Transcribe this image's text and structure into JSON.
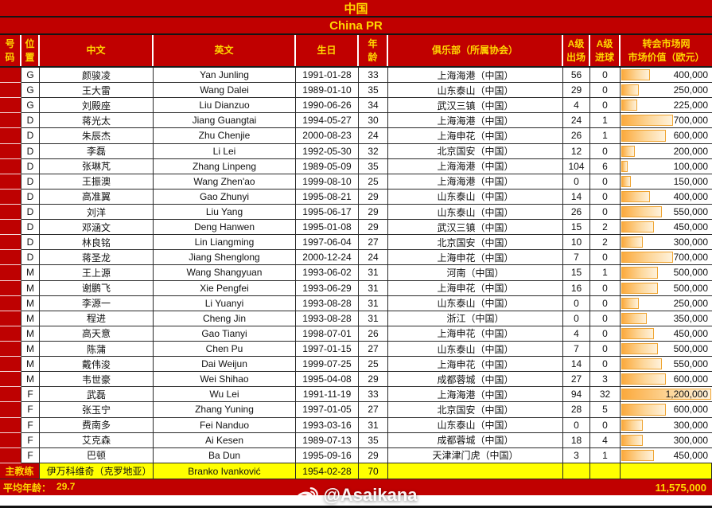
{
  "titles": {
    "cn": "中国",
    "en": "China PR"
  },
  "columns": [
    "号\n码",
    "位\n置",
    "中文",
    "英文",
    "生日",
    "年\n龄",
    "俱乐部（所属协会）",
    "A级\n出场",
    "A级\n进球",
    "转会市场网\n市场价值（欧元）"
  ],
  "players": [
    {
      "pos": "G",
      "name_cn": "颜骏凌",
      "name_en": "Yan Junling",
      "birth": "1991-01-28",
      "age": "33",
      "club": "上海海港（中国）",
      "caps": "56",
      "goals": "0",
      "value": "400,000"
    },
    {
      "pos": "G",
      "name_cn": "王大雷",
      "name_en": "Wang Dalei",
      "birth": "1989-01-10",
      "age": "35",
      "club": "山东泰山（中国）",
      "caps": "29",
      "goals": "0",
      "value": "250,000"
    },
    {
      "pos": "G",
      "name_cn": "刘殿座",
      "name_en": "Liu Dianzuo",
      "birth": "1990-06-26",
      "age": "34",
      "club": "武汉三镇（中国）",
      "caps": "4",
      "goals": "0",
      "value": "225,000"
    },
    {
      "pos": "D",
      "name_cn": "蒋光太",
      "name_en": "Jiang Guangtai",
      "birth": "1994-05-27",
      "age": "30",
      "club": "上海海港（中国）",
      "caps": "24",
      "goals": "1",
      "value": "700,000"
    },
    {
      "pos": "D",
      "name_cn": "朱辰杰",
      "name_en": "Zhu Chenjie",
      "birth": "2000-08-23",
      "age": "24",
      "club": "上海申花（中国）",
      "caps": "26",
      "goals": "1",
      "value": "600,000"
    },
    {
      "pos": "D",
      "name_cn": "李磊",
      "name_en": "Li Lei",
      "birth": "1992-05-30",
      "age": "32",
      "club": "北京国安（中国）",
      "caps": "12",
      "goals": "0",
      "value": "200,000"
    },
    {
      "pos": "D",
      "name_cn": "张琳芃",
      "name_en": "Zhang Linpeng",
      "birth": "1989-05-09",
      "age": "35",
      "club": "上海海港（中国）",
      "caps": "104",
      "goals": "6",
      "value": "100,000"
    },
    {
      "pos": "D",
      "name_cn": "王振澳",
      "name_en": "Wang Zhen'ao",
      "birth": "1999-08-10",
      "age": "25",
      "club": "上海海港（中国）",
      "caps": "0",
      "goals": "0",
      "value": "150,000"
    },
    {
      "pos": "D",
      "name_cn": "高准翼",
      "name_en": "Gao Zhunyi",
      "birth": "1995-08-21",
      "age": "29",
      "club": "山东泰山（中国）",
      "caps": "14",
      "goals": "0",
      "value": "400,000"
    },
    {
      "pos": "D",
      "name_cn": "刘洋",
      "name_en": "Liu Yang",
      "birth": "1995-06-17",
      "age": "29",
      "club": "山东泰山（中国）",
      "caps": "26",
      "goals": "0",
      "value": "550,000"
    },
    {
      "pos": "D",
      "name_cn": "邓涵文",
      "name_en": "Deng Hanwen",
      "birth": "1995-01-08",
      "age": "29",
      "club": "武汉三镇（中国）",
      "caps": "15",
      "goals": "2",
      "value": "450,000"
    },
    {
      "pos": "D",
      "name_cn": "林良铭",
      "name_en": "Lin Liangming",
      "birth": "1997-06-04",
      "age": "27",
      "club": "北京国安（中国）",
      "caps": "10",
      "goals": "2",
      "value": "300,000"
    },
    {
      "pos": "D",
      "name_cn": "蒋圣龙",
      "name_en": "Jiang Shenglong",
      "birth": "2000-12-24",
      "age": "24",
      "club": "上海申花（中国）",
      "caps": "7",
      "goals": "0",
      "value": "700,000"
    },
    {
      "pos": "M",
      "name_cn": "王上源",
      "name_en": "Wang Shangyuan",
      "birth": "1993-06-02",
      "age": "31",
      "club": "河南（中国）",
      "caps": "15",
      "goals": "1",
      "value": "500,000"
    },
    {
      "pos": "M",
      "name_cn": "谢鹏飞",
      "name_en": "Xie Pengfei",
      "birth": "1993-06-29",
      "age": "31",
      "club": "上海申花（中国）",
      "caps": "16",
      "goals": "0",
      "value": "500,000"
    },
    {
      "pos": "M",
      "name_cn": "李源一",
      "name_en": "Li Yuanyi",
      "birth": "1993-08-28",
      "age": "31",
      "club": "山东泰山（中国）",
      "caps": "0",
      "goals": "0",
      "value": "250,000"
    },
    {
      "pos": "M",
      "name_cn": "程进",
      "name_en": "Cheng Jin",
      "birth": "1993-08-28",
      "age": "31",
      "club": "浙江（中国）",
      "caps": "0",
      "goals": "0",
      "value": "350,000"
    },
    {
      "pos": "M",
      "name_cn": "高天意",
      "name_en": "Gao Tianyi",
      "birth": "1998-07-01",
      "age": "26",
      "club": "上海申花（中国）",
      "caps": "4",
      "goals": "0",
      "value": "450,000"
    },
    {
      "pos": "M",
      "name_cn": "陈蒲",
      "name_en": "Chen Pu",
      "birth": "1997-01-15",
      "age": "27",
      "club": "山东泰山（中国）",
      "caps": "7",
      "goals": "0",
      "value": "500,000"
    },
    {
      "pos": "M",
      "name_cn": "戴伟浚",
      "name_en": "Dai Weijun",
      "birth": "1999-07-25",
      "age": "25",
      "club": "上海申花（中国）",
      "caps": "14",
      "goals": "0",
      "value": "550,000"
    },
    {
      "pos": "M",
      "name_cn": "韦世豪",
      "name_en": "Wei Shihao",
      "birth": "1995-04-08",
      "age": "29",
      "club": "成都蓉城（中国）",
      "caps": "27",
      "goals": "3",
      "value": "600,000"
    },
    {
      "pos": "F",
      "name_cn": "武磊",
      "name_en": "Wu Lei",
      "birth": "1991-11-19",
      "age": "33",
      "club": "上海海港（中国）",
      "caps": "94",
      "goals": "32",
      "value": "1,200,000"
    },
    {
      "pos": "F",
      "name_cn": "张玉宁",
      "name_en": "Zhang Yuning",
      "birth": "1997-01-05",
      "age": "27",
      "club": "北京国安（中国）",
      "caps": "28",
      "goals": "5",
      "value": "600,000"
    },
    {
      "pos": "F",
      "name_cn": "费南多",
      "name_en": "Fei Nanduo",
      "birth": "1993-03-16",
      "age": "31",
      "club": "山东泰山（中国）",
      "caps": "0",
      "goals": "0",
      "value": "300,000"
    },
    {
      "pos": "F",
      "name_cn": "艾克森",
      "name_en": "Ai Kesen",
      "birth": "1989-07-13",
      "age": "35",
      "club": "成都蓉城（中国）",
      "caps": "18",
      "goals": "4",
      "value": "300,000"
    },
    {
      "pos": "F",
      "name_cn": "巴顿",
      "name_en": "Ba Dun",
      "birth": "1995-09-16",
      "age": "29",
      "club": "天津津门虎（中国）",
      "caps": "3",
      "goals": "1",
      "value": "450,000"
    }
  ],
  "coach": {
    "label": "主教练",
    "name_cn": "伊万科维奇（克罗地亚）",
    "name_en": "Branko Ivanković",
    "birth": "1954-02-28",
    "age": "70"
  },
  "footer": {
    "avg_age_label": "平均年龄：",
    "avg_age": "29.7",
    "total_value": "11,575,000"
  },
  "watermark": "@Asaikana",
  "colors": {
    "banner_red": "#C00000",
    "number_col_red": "#BE0101",
    "header_text_yellow": "#FFD700",
    "coach_row_yellow": "#FFFF00",
    "bar_orange": "#FBA93C",
    "bar_border": "#EFA432"
  }
}
